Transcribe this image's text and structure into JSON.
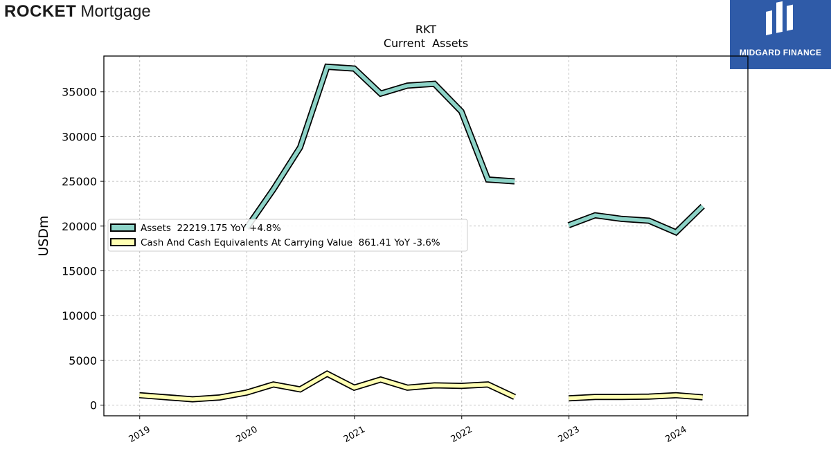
{
  "brand": {
    "left_logo_rocket": "ROCKET",
    "left_logo_mortgage": "Mortgage",
    "right_logo": "MIDGARD FINANCE"
  },
  "chart_data": {
    "type": "line",
    "title": "RKT",
    "subtitle": "Current  Assets",
    "xlabel": "",
    "ylabel": "USDm",
    "x": [
      "2018-12-31",
      "2019-06-30",
      "2019-09-30",
      "2019-12-31",
      "2020-03-31",
      "2020-06-30",
      "2020-09-30",
      "2020-12-31",
      "2021-03-31",
      "2021-06-30",
      "2021-09-30",
      "2021-12-31",
      "2022-03-31",
      "2022-06-30",
      "2022-09-30",
      "2022-12-31",
      "2023-03-31",
      "2023-06-30",
      "2023-09-30",
      "2023-12-31",
      "2024-03-31"
    ],
    "series": [
      {
        "name": "Assets  22219.175 YoY +4.8%",
        "color": "#8dd3c7",
        "values": [
          null,
          null,
          null,
          19800,
          24100,
          28800,
          37800,
          37600,
          34800,
          35700,
          35900,
          32800,
          25200,
          25000,
          null,
          20100,
          21200,
          20800,
          20600,
          19300,
          22219.175
        ]
      },
      {
        "name": "Cash And Cash Equivalents At Carrying Value  861.41 YoY -3.6%",
        "color": "#ffffb3",
        "values": [
          1100,
          650,
          850,
          1400,
          2300,
          1750,
          3500,
          1950,
          2850,
          1950,
          2200,
          2150,
          2300,
          900,
          null,
          750,
          900,
          900,
          950,
          1100,
          861.41
        ]
      }
    ],
    "ylim": [
      -1200,
      39000
    ],
    "yticks": [
      0,
      5000,
      10000,
      15000,
      20000,
      25000,
      30000,
      35000
    ],
    "xticks": [
      {
        "label": "2019",
        "date": "2019-01-01"
      },
      {
        "label": "2020",
        "date": "2020-01-01"
      },
      {
        "label": "2021",
        "date": "2021-01-01"
      },
      {
        "label": "2022",
        "date": "2022-01-01"
      },
      {
        "label": "2023",
        "date": "2023-01-01"
      },
      {
        "label": "2024",
        "date": "2024-01-01"
      }
    ],
    "xlim": [
      "2018-09-01",
      "2024-09-01"
    ],
    "grid": true,
    "legend_position": "center-left"
  }
}
